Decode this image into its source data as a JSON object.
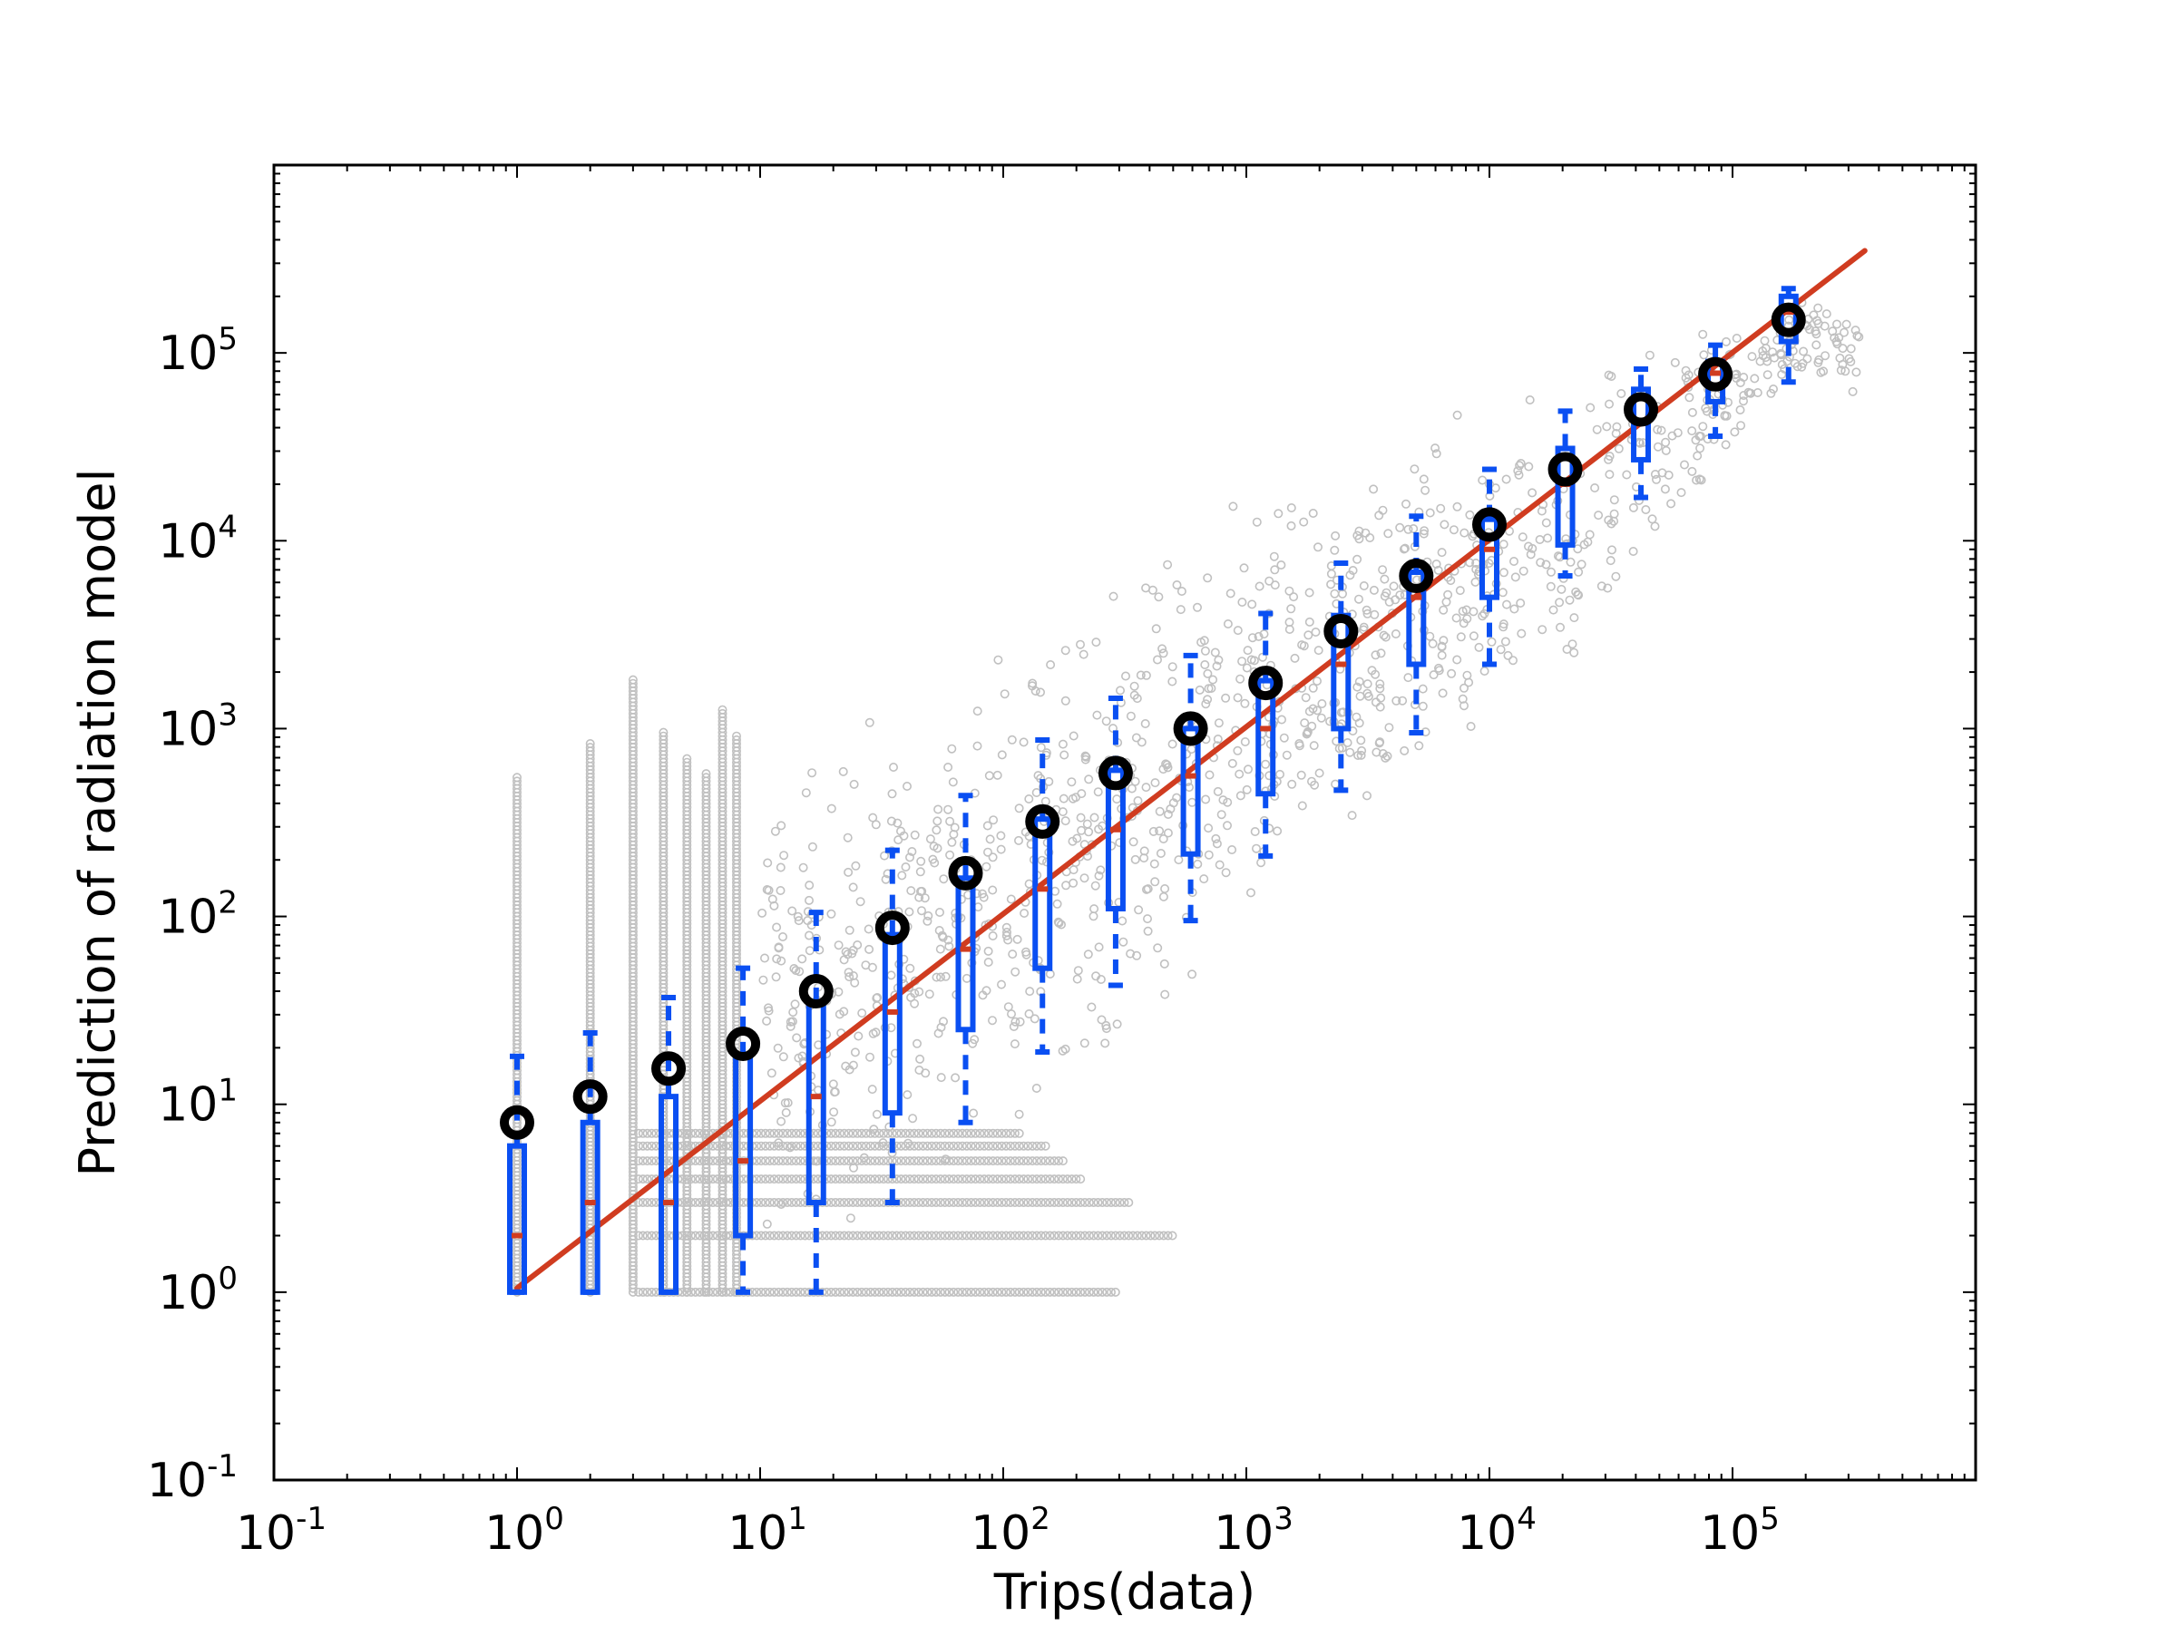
{
  "chart_data": {
    "type": "scatter",
    "title": "",
    "xlabel": "Trips(data)",
    "ylabel": "Prediction of radiation model",
    "xscale": "log",
    "yscale": "log",
    "xlim": [
      0.1,
      1000000
    ],
    "ylim": [
      0.1,
      1000000
    ],
    "grid": false,
    "x_tick_labels": [
      {
        "base": "10",
        "exp": "-1",
        "value": 0.1
      },
      {
        "base": "10",
        "exp": "0",
        "value": 1
      },
      {
        "base": "10",
        "exp": "1",
        "value": 10
      },
      {
        "base": "10",
        "exp": "2",
        "value": 100
      },
      {
        "base": "10",
        "exp": "3",
        "value": 1000
      },
      {
        "base": "10",
        "exp": "4",
        "value": 10000
      },
      {
        "base": "10",
        "exp": "5",
        "value": 100000
      }
    ],
    "y_tick_labels": [
      {
        "base": "10",
        "exp": "-1",
        "value": 0.1
      },
      {
        "base": "10",
        "exp": "0",
        "value": 1
      },
      {
        "base": "10",
        "exp": "1",
        "value": 10
      },
      {
        "base": "10",
        "exp": "2",
        "value": 100
      },
      {
        "base": "10",
        "exp": "3",
        "value": 1000
      },
      {
        "base": "10",
        "exp": "4",
        "value": 10000
      },
      {
        "base": "10",
        "exp": "5",
        "value": 100000
      }
    ],
    "colors": {
      "scatter": "#c0c0c0",
      "box": "#0a4ff2",
      "median": "#d03c20",
      "mean_marker": "#000000",
      "fit_line": "#d03c20"
    },
    "fit_line": {
      "x": [
        1,
        350000
      ],
      "y": [
        1.05,
        350000
      ]
    },
    "boxes": [
      {
        "x": 1,
        "q1": 1,
        "median": 2,
        "q3": 6,
        "whisker_low": 1,
        "whisker_high": 18,
        "mean": 8
      },
      {
        "x": 2,
        "q1": 1,
        "median": 3,
        "q3": 8,
        "whisker_low": 1,
        "whisker_high": 24,
        "mean": 11
      },
      {
        "x": 4.2,
        "q1": 1,
        "median": 3,
        "q3": 11,
        "whisker_low": 1,
        "whisker_high": 37,
        "mean": 15.5
      },
      {
        "x": 8.5,
        "q1": 2,
        "median": 5,
        "q3": 18,
        "whisker_low": 1,
        "whisker_high": 53,
        "mean": 21
      },
      {
        "x": 17,
        "q1": 3,
        "median": 11,
        "q3": 35,
        "whisker_low": 1,
        "whisker_high": 105,
        "mean": 40
      },
      {
        "x": 35,
        "q1": 9,
        "median": 31,
        "q3": 80,
        "whisker_low": 3,
        "whisker_high": 225,
        "mean": 87
      },
      {
        "x": 70,
        "q1": 25,
        "median": 67,
        "q3": 160,
        "whisker_low": 8,
        "whisker_high": 440,
        "mean": 170
      },
      {
        "x": 145,
        "q1": 53,
        "median": 140,
        "q3": 330,
        "whisker_low": 19,
        "whisker_high": 870,
        "mean": 320
      },
      {
        "x": 290,
        "q1": 110,
        "median": 290,
        "q3": 600,
        "whisker_low": 43,
        "whisker_high": 1450,
        "mean": 580
      },
      {
        "x": 590,
        "q1": 215,
        "median": 560,
        "q3": 1000,
        "whisker_low": 95,
        "whisker_high": 2450,
        "mean": 1000
      },
      {
        "x": 1200,
        "q1": 450,
        "median": 1000,
        "q3": 1800,
        "whisker_low": 210,
        "whisker_high": 4100,
        "mean": 1750
      },
      {
        "x": 2450,
        "q1": 1000,
        "median": 2200,
        "q3": 4000,
        "whisker_low": 470,
        "whisker_high": 7600,
        "mean": 3300
      },
      {
        "x": 5000,
        "q1": 2200,
        "median": 5000,
        "q3": 6800,
        "whisker_low": 950,
        "whisker_high": 13500,
        "mean": 6500
      },
      {
        "x": 10000,
        "q1": 5000,
        "median": 9000,
        "q3": 13000,
        "whisker_low": 2200,
        "whisker_high": 24000,
        "mean": 12200
      },
      {
        "x": 20500,
        "q1": 9500,
        "median": 20000,
        "q3": 31000,
        "whisker_low": 6500,
        "whisker_high": 49000,
        "mean": 24000
      },
      {
        "x": 42000,
        "q1": 27000,
        "median": 43000,
        "q3": 64000,
        "whisker_low": 17000,
        "whisker_high": 82000,
        "mean": 50000
      },
      {
        "x": 85000,
        "q1": 55000,
        "median": 78000,
        "q3": 90000,
        "whisker_low": 36000,
        "whisker_high": 110000,
        "mean": 77000
      },
      {
        "x": 170000,
        "q1": 115000,
        "median": 165000,
        "q3": 200000,
        "whisker_low": 70000,
        "whisker_high": 220000,
        "mean": 150000
      }
    ],
    "scatter": {
      "integer_rows": [
        {
          "y": 1,
          "x_max": 300
        },
        {
          "y": 2,
          "x_max": 500
        },
        {
          "y": 3,
          "x_max": 330
        },
        {
          "y": 4,
          "x_max": 210
        },
        {
          "y": 5,
          "x_max": 180
        },
        {
          "y": 6,
          "x_max": 150
        },
        {
          "y": 7,
          "x_max": 120
        }
      ],
      "integer_columns": [
        {
          "x": 1,
          "y_max": 560
        },
        {
          "x": 2,
          "y_max": 870
        },
        {
          "x": 3,
          "y_max": 1900
        },
        {
          "x": 4,
          "y_max": 1000
        },
        {
          "x": 5,
          "y_max": 700
        },
        {
          "x": 6,
          "y_max": 600
        },
        {
          "x": 7,
          "y_max": 1300
        },
        {
          "x": 8,
          "y_max": 950
        }
      ],
      "cloud_bins": [
        {
          "x": 10,
          "y_lo": 1,
          "y_hi": 700
        },
        {
          "x": 20,
          "y_lo": 1,
          "y_hi": 2000
        },
        {
          "x": 40,
          "y_lo": 2,
          "y_hi": 2500
        },
        {
          "x": 80,
          "y_lo": 4,
          "y_hi": 4500
        },
        {
          "x": 160,
          "y_lo": 7,
          "y_hi": 8000
        },
        {
          "x": 320,
          "y_lo": 10,
          "y_hi": 12000
        },
        {
          "x": 640,
          "y_lo": 20,
          "y_hi": 20000
        },
        {
          "x": 1280,
          "y_lo": 50,
          "y_hi": 30000
        },
        {
          "x": 2560,
          "y_lo": 100,
          "y_hi": 50000
        },
        {
          "x": 5120,
          "y_lo": 250,
          "y_hi": 60000
        },
        {
          "x": 10240,
          "y_lo": 600,
          "y_hi": 70000
        },
        {
          "x": 20480,
          "y_lo": 1200,
          "y_hi": 90000
        },
        {
          "x": 40960,
          "y_lo": 4000,
          "y_hi": 150000
        },
        {
          "x": 81920,
          "y_lo": 15000,
          "y_hi": 230000
        },
        {
          "x": 163840,
          "y_lo": 50000,
          "y_hi": 230000
        },
        {
          "x": 340000,
          "y_lo": 50000,
          "y_hi": 230000
        }
      ]
    }
  }
}
